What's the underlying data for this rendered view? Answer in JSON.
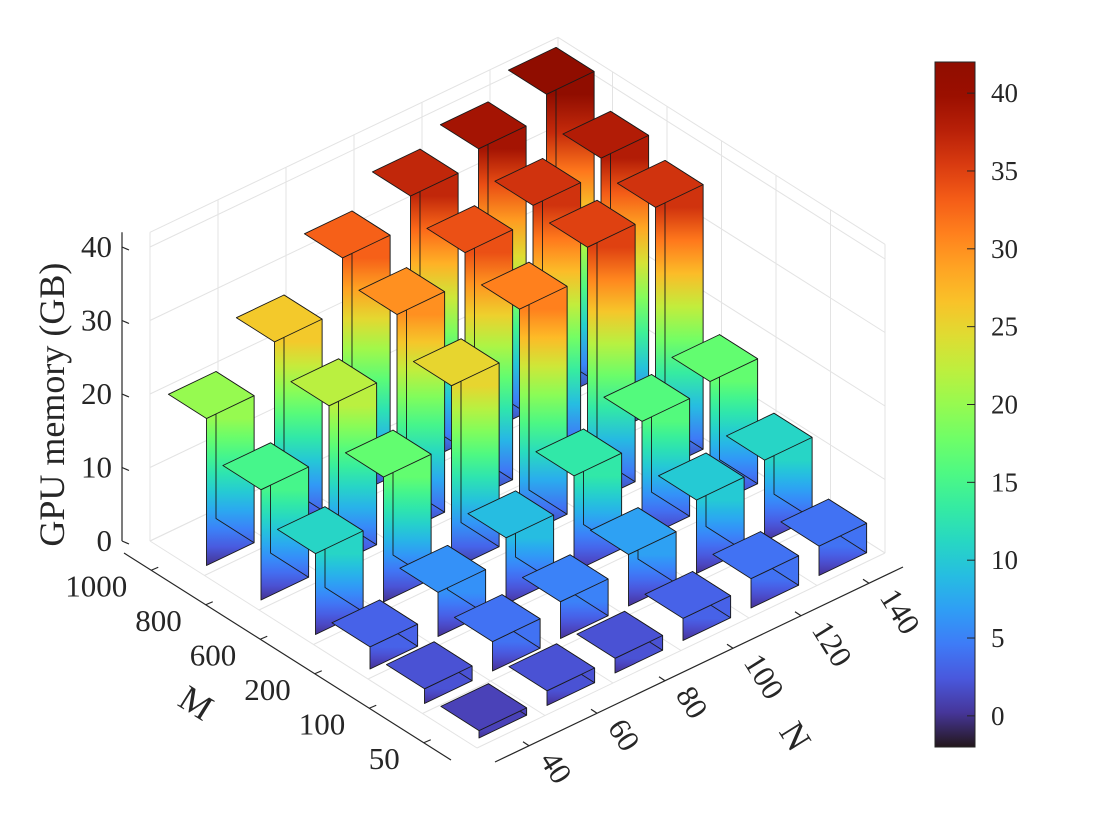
{
  "chart_data": {
    "type": "bar3d",
    "x_axis": {
      "label": "N",
      "categories": [
        "40",
        "60",
        "80",
        "100",
        "120",
        "140"
      ]
    },
    "y_axis": {
      "label": "M",
      "categories": [
        "50",
        "100",
        "200",
        "600",
        "800",
        "1000"
      ]
    },
    "z_axis": {
      "label": "GPU memory (GB)",
      "ticks": [
        0,
        10,
        20,
        30,
        40
      ],
      "range": [
        0,
        42
      ]
    },
    "values_by_M": [
      {
        "M": "1000",
        "values": [
          20,
          26,
          33,
          37,
          39,
          42
        ]
      },
      {
        "M": "800",
        "values": [
          15,
          22,
          30,
          34,
          36,
          38
        ]
      },
      {
        "M": "600",
        "values": [
          11,
          17,
          25,
          31,
          35,
          36
        ]
      },
      {
        "M": "200",
        "values": [
          3,
          6,
          9,
          13,
          16,
          17
        ]
      },
      {
        "M": "100",
        "values": [
          2,
          4,
          5,
          7,
          10,
          11
        ]
      },
      {
        "M": "50",
        "values": [
          1,
          2,
          2,
          3,
          4,
          4
        ]
      }
    ],
    "grid": true,
    "colormap": "turbo",
    "colorbar": {
      "ticks": [
        0,
        5,
        10,
        15,
        20,
        25,
        30,
        35,
        40
      ],
      "range": [
        -2,
        42
      ],
      "placement": "right"
    }
  }
}
